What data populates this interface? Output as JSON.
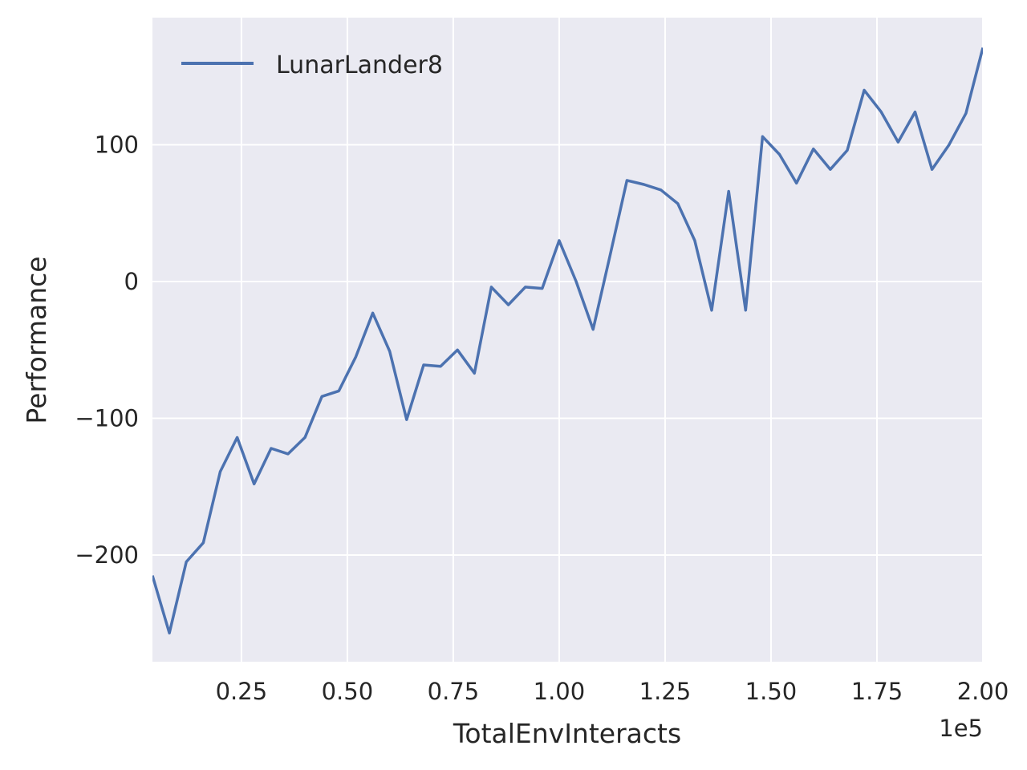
{
  "chart_data": {
    "type": "line",
    "xlabel": "TotalEnvInteracts",
    "ylabel": "Performance",
    "x_offset_label": "1e5",
    "xlim": [
      0.04,
      2.0
    ],
    "ylim": [
      -278,
      193
    ],
    "x_ticks": [
      0.25,
      0.5,
      0.75,
      1.0,
      1.25,
      1.5,
      1.75,
      2.0
    ],
    "x_tick_labels": [
      "0.25",
      "0.50",
      "0.75",
      "1.00",
      "1.25",
      "1.50",
      "1.75",
      "2.00"
    ],
    "y_ticks": [
      -200,
      -100,
      0,
      100
    ],
    "y_tick_labels": [
      "−200",
      "−100",
      "0",
      "100"
    ],
    "grid": true,
    "legend_position": "top-left",
    "colors": {
      "background": "#eaeaf2",
      "grid": "#ffffff",
      "line": "#4c72b0"
    },
    "series": [
      {
        "name": "LunarLander8",
        "x": [
          0.04,
          0.08,
          0.12,
          0.16,
          0.2,
          0.24,
          0.28,
          0.32,
          0.36,
          0.4,
          0.44,
          0.48,
          0.52,
          0.56,
          0.6,
          0.64,
          0.68,
          0.72,
          0.76,
          0.8,
          0.84,
          0.88,
          0.92,
          0.96,
          1.0,
          1.04,
          1.08,
          1.12,
          1.16,
          1.2,
          1.24,
          1.28,
          1.32,
          1.36,
          1.4,
          1.44,
          1.48,
          1.52,
          1.56,
          1.6,
          1.64,
          1.68,
          1.72,
          1.76,
          1.8,
          1.84,
          1.88,
          1.92,
          1.96,
          2.0
        ],
        "y": [
          -215,
          -257,
          -205,
          -191,
          -139,
          -114,
          -148,
          -122,
          -126,
          -114,
          -84,
          -80,
          -55,
          -23,
          -51,
          -101,
          -61,
          -62,
          -50,
          -67,
          -4,
          -17,
          -4,
          -5,
          30,
          0,
          -35,
          19,
          74,
          71,
          67,
          57,
          30,
          -21,
          66,
          -21,
          106,
          93,
          72,
          97,
          82,
          96,
          140,
          124,
          102,
          124,
          82,
          100,
          123,
          171
        ]
      }
    ]
  }
}
